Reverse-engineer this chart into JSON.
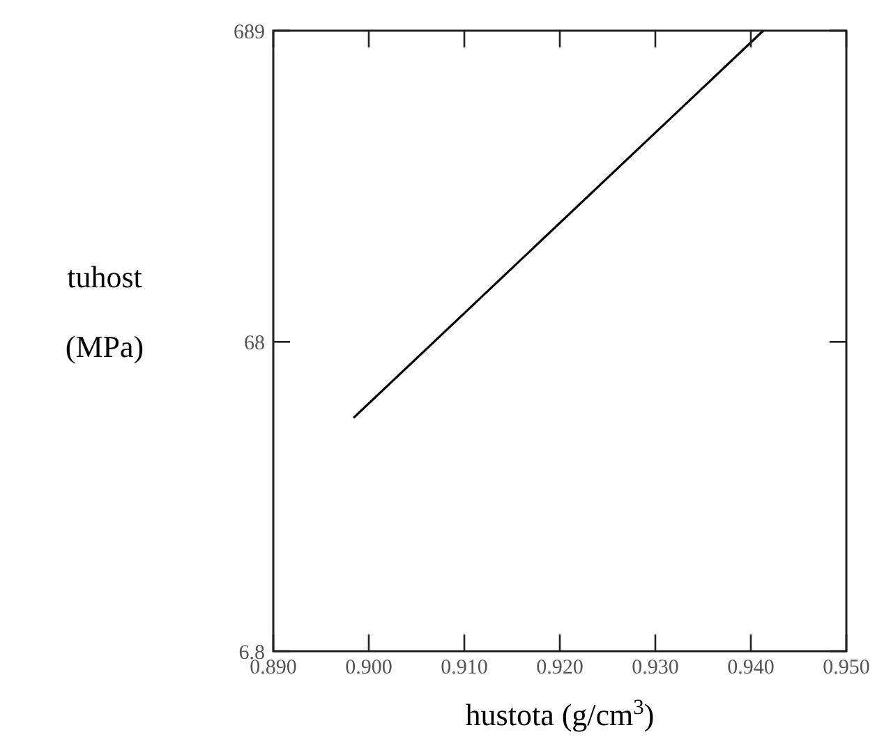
{
  "chart_data": {
    "type": "line",
    "xlabel": "hustota (g/cm$^{3}$)",
    "ylabel": "tuhost (MPa)",
    "log": "y",
    "x": [
      0.8984,
      0.9413
    ],
    "series": [
      {
        "color": "#000000",
        "values": [
          38.6,
          689
        ]
      }
    ],
    "xlim": [
      0.89,
      0.95
    ],
    "xticks": [
      {
        "value": 0.89,
        "label": "0.890"
      },
      {
        "value": 0.9,
        "label": "0.900"
      },
      {
        "value": 0.91,
        "label": "0.910"
      },
      {
        "value": 0.92,
        "label": "0.920"
      },
      {
        "value": 0.93,
        "label": "0.930"
      },
      {
        "value": 0.94,
        "label": "0.940"
      },
      {
        "value": 0.95,
        "label": "0.950"
      }
    ],
    "ylim": [
      6.8,
      689
    ],
    "yticks": [
      6.8,
      68,
      689
    ],
    "grid": false,
    "marker": "none",
    "line_style": "solid"
  }
}
